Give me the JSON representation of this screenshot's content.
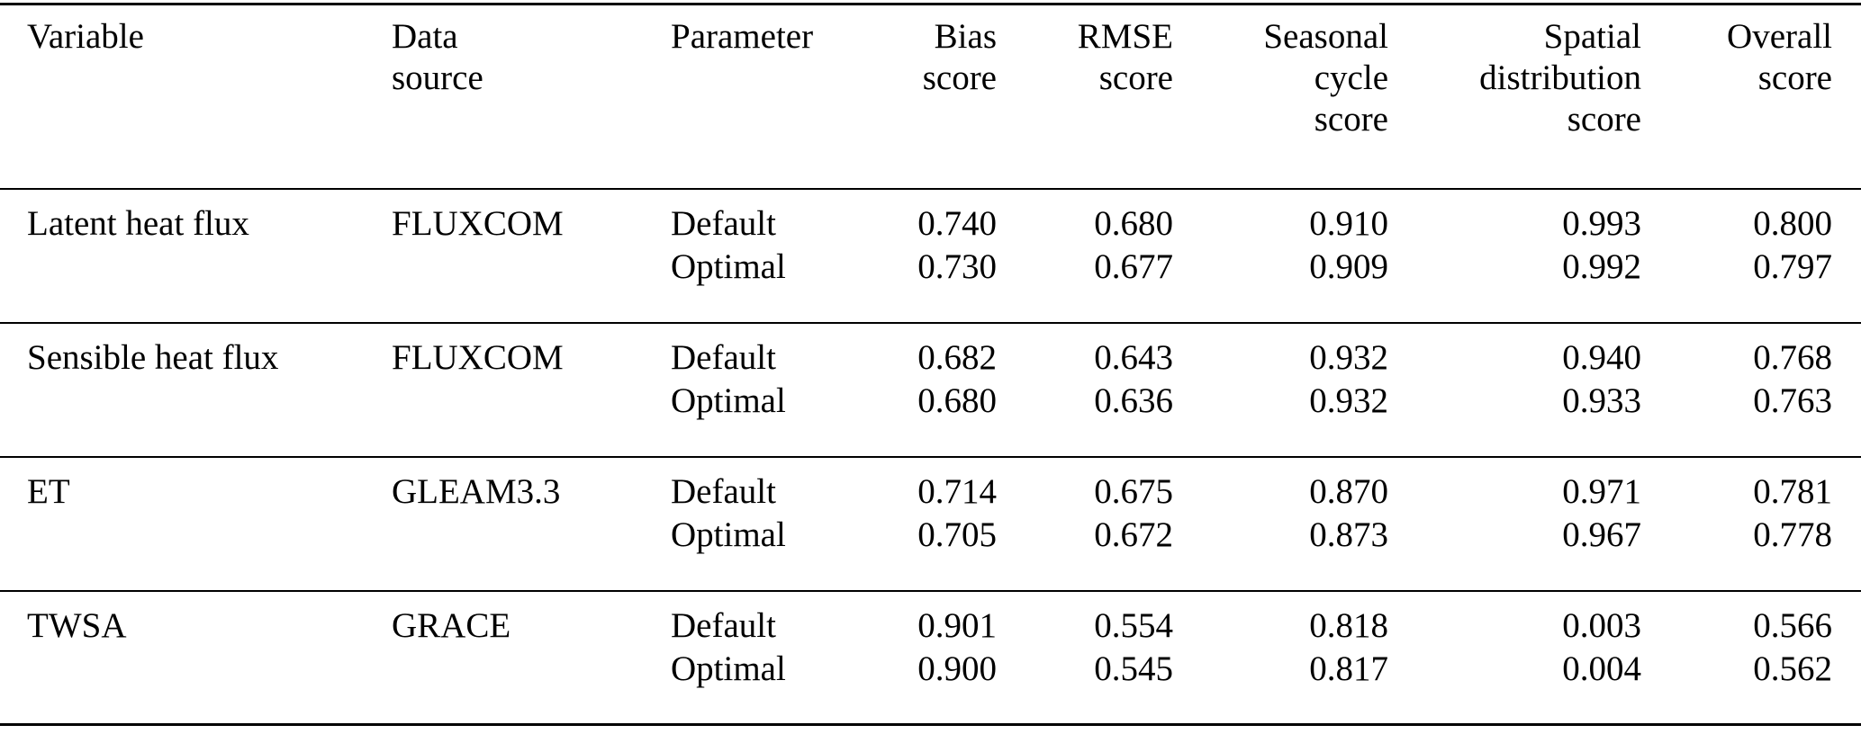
{
  "colors": {
    "background": "#ffffff",
    "text": "#000000",
    "rule": "#000000"
  },
  "table": {
    "headers": {
      "variable": "Variable",
      "data_source": "Data\nsource",
      "parameter": "Parameter",
      "bias_score": "Bias\nscore",
      "rmse_score": "RMSE\nscore",
      "seasonal_cycle_score": "Seasonal\ncycle\nscore",
      "spatial_distribution_score": "Spatial\ndistribution\nscore",
      "overall_score": "Overall\nscore"
    },
    "groups": [
      {
        "variable": "Latent heat flux",
        "data_source": "FLUXCOM",
        "rows": [
          {
            "parameter": "Default",
            "bias_score": "0.740",
            "rmse_score": "0.680",
            "seasonal_cycle_score": "0.910",
            "spatial_distribution_score": "0.993",
            "overall_score": "0.800"
          },
          {
            "parameter": "Optimal",
            "bias_score": "0.730",
            "rmse_score": "0.677",
            "seasonal_cycle_score": "0.909",
            "spatial_distribution_score": "0.992",
            "overall_score": "0.797"
          }
        ]
      },
      {
        "variable": "Sensible heat flux",
        "data_source": "FLUXCOM",
        "rows": [
          {
            "parameter": "Default",
            "bias_score": "0.682",
            "rmse_score": "0.643",
            "seasonal_cycle_score": "0.932",
            "spatial_distribution_score": "0.940",
            "overall_score": "0.768"
          },
          {
            "parameter": "Optimal",
            "bias_score": "0.680",
            "rmse_score": "0.636",
            "seasonal_cycle_score": "0.932",
            "spatial_distribution_score": "0.933",
            "overall_score": "0.763"
          }
        ]
      },
      {
        "variable": "ET",
        "data_source": "GLEAM3.3",
        "rows": [
          {
            "parameter": "Default",
            "bias_score": "0.714",
            "rmse_score": "0.675",
            "seasonal_cycle_score": "0.870",
            "spatial_distribution_score": "0.971",
            "overall_score": "0.781"
          },
          {
            "parameter": "Optimal",
            "bias_score": "0.705",
            "rmse_score": "0.672",
            "seasonal_cycle_score": "0.873",
            "spatial_distribution_score": "0.967",
            "overall_score": "0.778"
          }
        ]
      },
      {
        "variable": "TWSA",
        "data_source": "GRACE",
        "rows": [
          {
            "parameter": "Default",
            "bias_score": "0.901",
            "rmse_score": "0.554",
            "seasonal_cycle_score": "0.818",
            "spatial_distribution_score": "0.003",
            "overall_score": "0.566"
          },
          {
            "parameter": "Optimal",
            "bias_score": "0.900",
            "rmse_score": "0.545",
            "seasonal_cycle_score": "0.817",
            "spatial_distribution_score": "0.004",
            "overall_score": "0.562"
          }
        ]
      }
    ]
  }
}
